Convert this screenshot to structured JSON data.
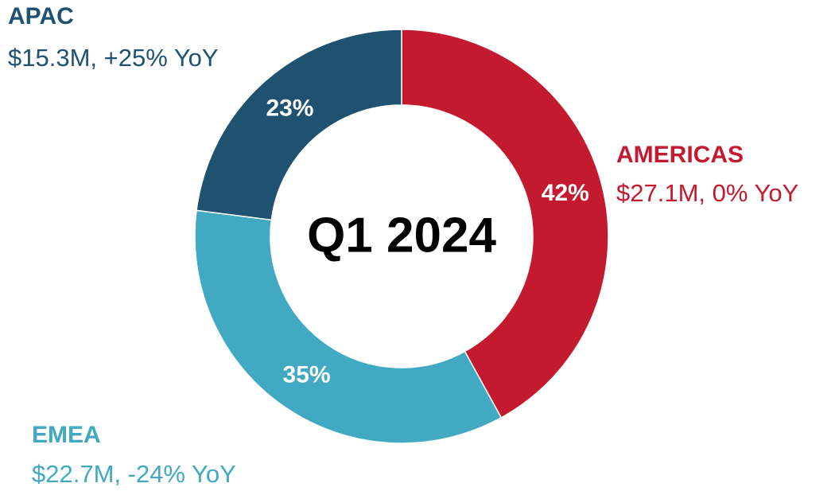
{
  "chart_data": {
    "type": "pie",
    "donut": true,
    "title": "Q1 2024",
    "categories": [
      "AMERICAS",
      "EMEA",
      "APAC"
    ],
    "values": [
      42,
      35,
      23
    ],
    "value_labels": [
      "42%",
      "35%",
      "23%"
    ],
    "annotations": [
      "$27.1M, 0% YoY",
      "$22.7M, -24% YoY",
      "$15.3M, +25% YoY"
    ],
    "colors": [
      "#c41a2f",
      "#41a9c1",
      "#1e5270"
    ]
  }
}
